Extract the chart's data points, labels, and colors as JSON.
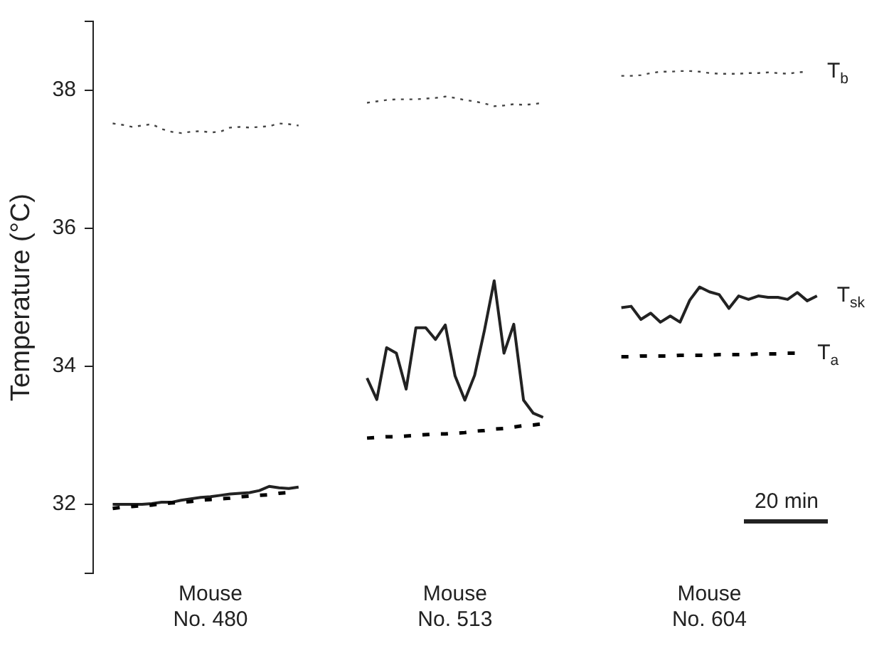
{
  "chart_data": {
    "type": "line",
    "ylabel": "Temperature (°C)",
    "ylim": [
      31,
      39
    ],
    "categories": [
      null,
      null,
      null,
      null,
      null,
      null,
      null,
      null,
      null,
      null,
      null,
      null,
      "Mouse\nNo. 480",
      null,
      null,
      null,
      null,
      null,
      null,
      null,
      null,
      null,
      null,
      null,
      null,
      null,
      null,
      null,
      null,
      null,
      null,
      null,
      null,
      null,
      null,
      null,
      null,
      "Mouse\nNo. 513",
      null,
      null,
      null,
      null,
      null,
      null,
      null,
      null,
      null,
      null,
      null,
      null,
      null,
      null,
      null,
      null,
      null,
      null,
      null,
      null,
      null,
      null,
      null,
      null,
      null,
      "Mouse\nNo. 604",
      null,
      null,
      null,
      null,
      null,
      null,
      null,
      null,
      null,
      null,
      null,
      null,
      null,
      null
    ],
    "yticks": [
      {
        "value": 31,
        "label": null
      },
      32,
      34,
      36,
      38,
      {
        "value": 39,
        "label": null
      }
    ],
    "grid": false,
    "legend": false,
    "marker": "none",
    "annotations": [
      "20 min"
    ],
    "series": [
      {
        "name": "T$_{b}$",
        "color": "#444444",
        "line_style": "dotted",
        "values": [
          null,
          null,
          37.52,
          37.5,
          37.47,
          37.49,
          37.51,
          37.44,
          37.4,
          37.38,
          37.4,
          37.41,
          37.39,
          37.4,
          37.46,
          37.47,
          37.46,
          37.47,
          37.48,
          37.52,
          37.51,
          37.49,
          null,
          null,
          null,
          null,
          null,
          null,
          37.82,
          37.84,
          37.86,
          37.87,
          37.87,
          37.87,
          37.88,
          37.89,
          37.91,
          37.89,
          37.86,
          37.84,
          37.81,
          37.77,
          37.78,
          37.8,
          37.79,
          37.8,
          37.82,
          null,
          null,
          null,
          null,
          null,
          null,
          null,
          38.21,
          38.21,
          38.22,
          38.25,
          38.27,
          38.27,
          38.28,
          38.28,
          38.27,
          38.25,
          38.24,
          38.24,
          38.24,
          38.25,
          38.25,
          38.26,
          38.25,
          38.24,
          38.26,
          38.27,
          null,
          null,
          null,
          null
        ]
      },
      {
        "name": "T$_{sk}$",
        "color": "#222222",
        "line_style": "solid",
        "values": [
          null,
          null,
          32.0,
          32.0,
          32.0,
          32.0,
          32.01,
          32.03,
          32.03,
          32.06,
          32.08,
          32.1,
          32.11,
          32.13,
          32.15,
          32.16,
          32.17,
          32.2,
          32.26,
          32.24,
          32.23,
          32.25,
          null,
          null,
          null,
          null,
          null,
          null,
          33.83,
          33.52,
          34.27,
          34.19,
          33.67,
          34.56,
          34.56,
          34.39,
          34.6,
          33.86,
          33.51,
          33.87,
          34.52,
          35.24,
          34.19,
          34.61,
          33.51,
          33.32,
          33.26,
          null,
          null,
          null,
          null,
          null,
          null,
          null,
          34.85,
          34.87,
          34.68,
          34.77,
          34.64,
          34.73,
          34.64,
          34.96,
          35.15,
          35.08,
          35.04,
          34.84,
          35.02,
          34.97,
          35.02,
          35.0,
          35.0,
          34.97,
          35.07,
          34.95,
          35.02,
          null,
          null,
          null
        ]
      },
      {
        "name": "T$_{a}$",
        "color": "#000000",
        "line_style": "dashed",
        "values": [
          null,
          null,
          31.94,
          31.96,
          31.97,
          31.98,
          31.99,
          32.01,
          32.02,
          32.03,
          32.04,
          32.06,
          32.07,
          32.08,
          32.09,
          32.11,
          32.12,
          32.13,
          32.14,
          32.16,
          32.17,
          null,
          null,
          null,
          null,
          null,
          null,
          null,
          32.96,
          32.97,
          32.98,
          32.98,
          32.99,
          33.0,
          33.01,
          33.02,
          33.02,
          33.03,
          33.04,
          33.06,
          33.07,
          33.09,
          33.1,
          33.12,
          33.14,
          33.15,
          33.17,
          null,
          null,
          null,
          null,
          null,
          null,
          null,
          34.14,
          34.14,
          34.15,
          34.15,
          34.15,
          34.15,
          34.16,
          34.16,
          34.16,
          34.16,
          34.17,
          34.17,
          34.17,
          34.17,
          34.18,
          34.18,
          34.18,
          34.19,
          34.19,
          null,
          null,
          null,
          null,
          null
        ]
      }
    ]
  }
}
